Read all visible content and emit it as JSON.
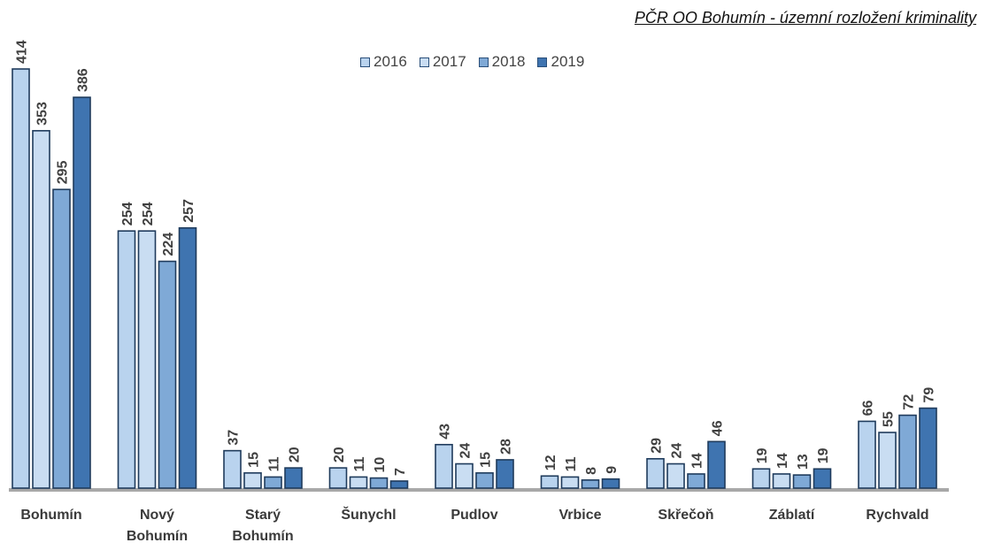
{
  "chart_data": {
    "type": "bar",
    "title": "PČR OO Bohumín - územní rozložení kriminality",
    "categories": [
      [
        "Bohumín"
      ],
      [
        "Nový",
        "Bohumín"
      ],
      [
        "Starý",
        "Bohumín"
      ],
      [
        "Šunychl"
      ],
      [
        "Pudlov"
      ],
      [
        "Vrbice"
      ],
      [
        "Skřečoň"
      ],
      [
        "Záblatí"
      ],
      [
        "Rychvald"
      ]
    ],
    "series": [
      {
        "name": "2016",
        "color": "#b9d3ee",
        "values": [
          414,
          254,
          37,
          20,
          43,
          12,
          29,
          19,
          66
        ]
      },
      {
        "name": "2017",
        "color": "#c9ddf2",
        "values": [
          353,
          254,
          15,
          11,
          24,
          11,
          24,
          14,
          55
        ]
      },
      {
        "name": "2018",
        "color": "#7fa9d6",
        "values": [
          295,
          224,
          11,
          10,
          15,
          8,
          14,
          13,
          72
        ]
      },
      {
        "name": "2019",
        "color": "#3f74b0",
        "values": [
          386,
          257,
          20,
          7,
          28,
          9,
          46,
          19,
          79
        ]
      }
    ],
    "ylim": [
      0,
      414
    ],
    "legend_position": "top-center",
    "grid": false
  }
}
